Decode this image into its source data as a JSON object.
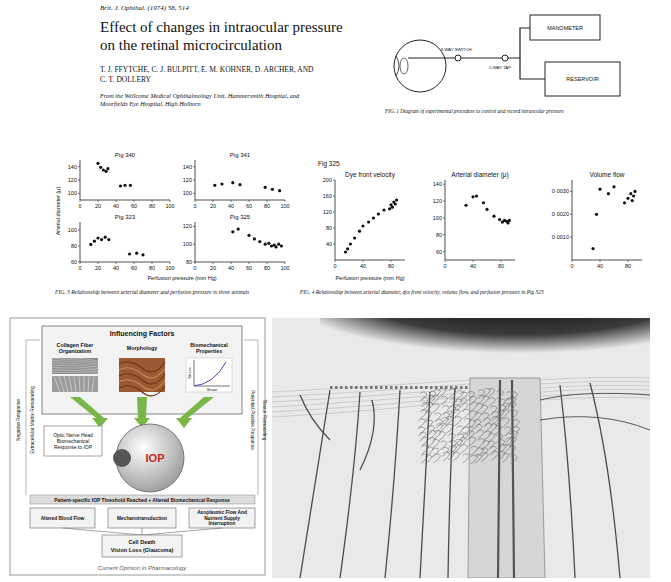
{
  "header": {
    "journal": "Brit. J. Ophthal. (1974) 58, 514",
    "title_lines": [
      "Effect of changes in intraocular pressure",
      "on the retinal microcirculation"
    ],
    "author_lines": [
      "T. J. FFYTCHE, C. J. BULPITT, E. M. KOHNER, D. ARCHER, AND",
      "C. T. DOLLERY"
    ],
    "affiliation_lines": [
      "From the Wellcome Medical Ophthalmology Unit, Hammersmith Hospital, and",
      "Moorfields Eye Hospital, High Holborn"
    ]
  },
  "figure1": {
    "labels": [
      "MANOMETER",
      "RESERVOIR",
      "3-WAY SWITCH",
      "2-WAY TAP"
    ],
    "caption": "FIG. 1 Diagram of experimental procedure to control and record intraocular pressure"
  },
  "figure3": {
    "y_label": "Arterial diameter (μ)",
    "x_label": "Perfusion pressure (mm Hg)",
    "caption": "FIG. 3 Relationship between arterial diameter and perfusion pressure in three animals"
  },
  "figure4": {
    "label": "Fig 325",
    "x_label": "Perfusion pressure (mm Hg)",
    "caption": "FIG. 4 Relationship between arterial diameter, dye front velocity, volume flow, and perfusion pressure in Pig 325"
  },
  "chart_data": [
    {
      "type": "scatter",
      "title": "Pig 340",
      "x": [
        20,
        23,
        26,
        29,
        31,
        45,
        50,
        56
      ],
      "values": [
        145,
        139,
        135,
        133,
        137,
        111,
        112,
        112
      ],
      "xlim": [
        0,
        100
      ],
      "ylim": [
        90,
        150
      ],
      "xticks": [
        0,
        20,
        40,
        60,
        80,
        100
      ],
      "yticks": [
        100,
        120,
        140
      ]
    },
    {
      "type": "scatter",
      "title": "Pig 341",
      "x": [
        22,
        30,
        42,
        50,
        78,
        86,
        94
      ],
      "values": [
        112,
        114,
        116,
        113,
        109,
        106,
        104
      ],
      "xlim": [
        0,
        100
      ],
      "ylim": [
        90,
        150
      ],
      "xticks": [
        0,
        20,
        40,
        60,
        80,
        100
      ],
      "yticks": [
        100,
        120,
        140
      ]
    },
    {
      "type": "scatter",
      "title": "Pig 323",
      "x": [
        12,
        16,
        20,
        24,
        28,
        32,
        55,
        63,
        70
      ],
      "values": [
        82,
        86,
        90,
        88,
        91,
        88,
        70,
        71,
        69
      ],
      "xlim": [
        0,
        100
      ],
      "ylim": [
        60,
        110
      ],
      "xticks": [
        0,
        20,
        40,
        60,
        80,
        100
      ],
      "yticks": [
        60,
        80,
        100
      ]
    },
    {
      "type": "scatter",
      "title": "Pig 325",
      "x": [
        42,
        48,
        60,
        66,
        72,
        78,
        82,
        85,
        88,
        90,
        93,
        96
      ],
      "values": [
        114,
        117,
        110,
        106,
        103,
        100,
        101,
        98,
        99,
        97,
        100,
        98
      ],
      "xlim": [
        0,
        100
      ],
      "ylim": [
        80,
        125
      ],
      "xticks": [
        0,
        20,
        40,
        60,
        80,
        100
      ],
      "yticks": [
        80,
        100,
        120
      ]
    },
    {
      "type": "scatter",
      "title": "Dye front velocity",
      "x": [
        15,
        18,
        22,
        28,
        35,
        40,
        48,
        55,
        62,
        70,
        78,
        80,
        82,
        84,
        86,
        88
      ],
      "values": [
        20,
        28,
        40,
        55,
        72,
        85,
        95,
        105,
        115,
        125,
        128,
        138,
        132,
        145,
        140,
        150
      ],
      "xlim": [
        0,
        100
      ],
      "ylim": [
        0,
        200
      ],
      "xticks": [
        0,
        40,
        80
      ],
      "yticks": [
        40,
        80,
        120,
        160,
        200
      ]
    },
    {
      "type": "scatter",
      "title": "Arterial diameter (μ)",
      "x": [
        30,
        40,
        45,
        55,
        60,
        70,
        78,
        82,
        85,
        88,
        90,
        92
      ],
      "values": [
        115,
        125,
        126,
        118,
        110,
        102,
        98,
        95,
        97,
        96,
        94,
        97
      ],
      "xlim": [
        0,
        100
      ],
      "ylim": [
        50,
        145
      ],
      "xticks": [
        0,
        40,
        80
      ],
      "yticks": [
        60,
        80,
        100,
        120,
        140
      ]
    },
    {
      "type": "scatter",
      "title": "Volume flow",
      "x": [
        30,
        35,
        40,
        52,
        60,
        75,
        80,
        84,
        86,
        88,
        90
      ],
      "values": [
        0.0005,
        0.002,
        0.0031,
        0.0029,
        0.0032,
        0.0025,
        0.0027,
        0.0029,
        0.0026,
        0.0028,
        0.003
      ],
      "xlim": [
        0,
        100
      ],
      "ylim": [
        0,
        0.0035
      ],
      "xticks": [
        0,
        40,
        80
      ],
      "yticks": [
        {
          "value": 0.001,
          "label": "0·0010"
        },
        {
          "value": 0.002,
          "label": "0·0020"
        },
        {
          "value": 0.003,
          "label": "0·0030"
        }
      ]
    }
  ],
  "diagram": {
    "header": "Influencing Factors",
    "factors": [
      "Collagen Fiber Organization",
      "Morphology",
      "Biomechanical Properties"
    ],
    "curve_labels": [
      "Stress",
      "Strain"
    ],
    "response": "Optic Nerve Head Biomechanical Response to IOP",
    "center": "IOP",
    "threshold": "Patient-specific IOP Threshold Reached + Altered Biomechanical Response",
    "effects": [
      "Altered Blood Flow",
      "Mechanotransduction",
      "Axoplasmic Flow And Nutrient Supply Interruption"
    ],
    "outcome_lines": [
      "Cell Death",
      "Vision Loss (Glaucoma)"
    ],
    "left_labels": [
      "Negative Response",
      "Extracellular Matrix Remodeling"
    ],
    "right_labels": [
      "Potential Positive Response",
      "Tissue Remodeling"
    ],
    "source": "Current Opinion in Pharmacology"
  }
}
